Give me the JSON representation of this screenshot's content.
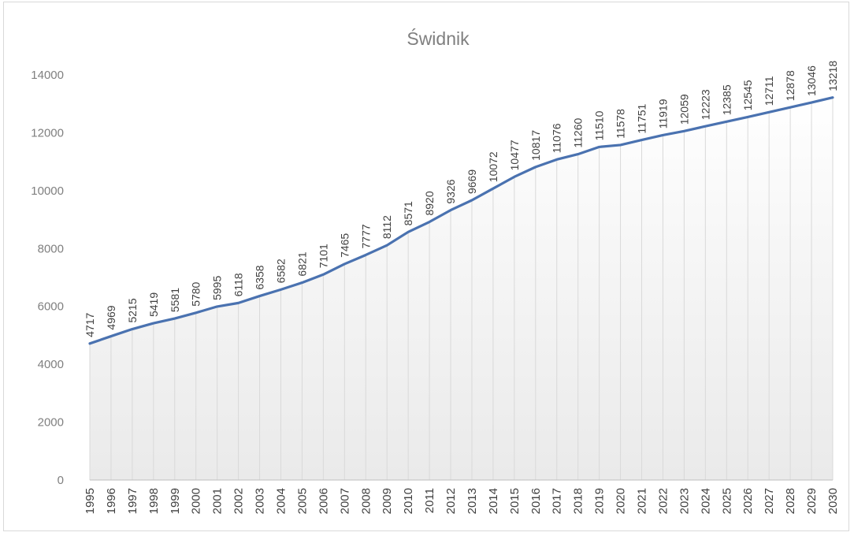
{
  "chart_data": {
    "type": "area",
    "title": "Świdnik",
    "xlabel": "",
    "ylabel": "",
    "ylim": [
      0,
      14000
    ],
    "yticks": [
      0,
      2000,
      4000,
      6000,
      8000,
      10000,
      12000,
      14000
    ],
    "categories": [
      "1995",
      "1996",
      "1997",
      "1998",
      "1999",
      "2000",
      "2001",
      "2002",
      "2003",
      "2004",
      "2005",
      "2006",
      "2007",
      "2008",
      "2009",
      "2010",
      "2011",
      "2012",
      "2013",
      "2014",
      "2015",
      "2016",
      "2017",
      "2018",
      "2019",
      "2020",
      "2021",
      "2022",
      "2023",
      "2024",
      "2025",
      "2026",
      "2027",
      "2028",
      "2029",
      "2030"
    ],
    "series": [
      {
        "values": [
          4717,
          4969,
          5215,
          5419,
          5581,
          5780,
          5995,
          6118,
          6358,
          6582,
          6821,
          7101,
          7465,
          7777,
          8112,
          8571,
          8920,
          9326,
          9669,
          10072,
          10477,
          10817,
          11076,
          11260,
          11510,
          11578,
          11751,
          11919,
          12059,
          12223,
          12385,
          12545,
          12711,
          12878,
          13046,
          13218
        ],
        "color": "#4a72b0"
      }
    ],
    "grid": false,
    "data_labels": true,
    "legend": "none"
  }
}
